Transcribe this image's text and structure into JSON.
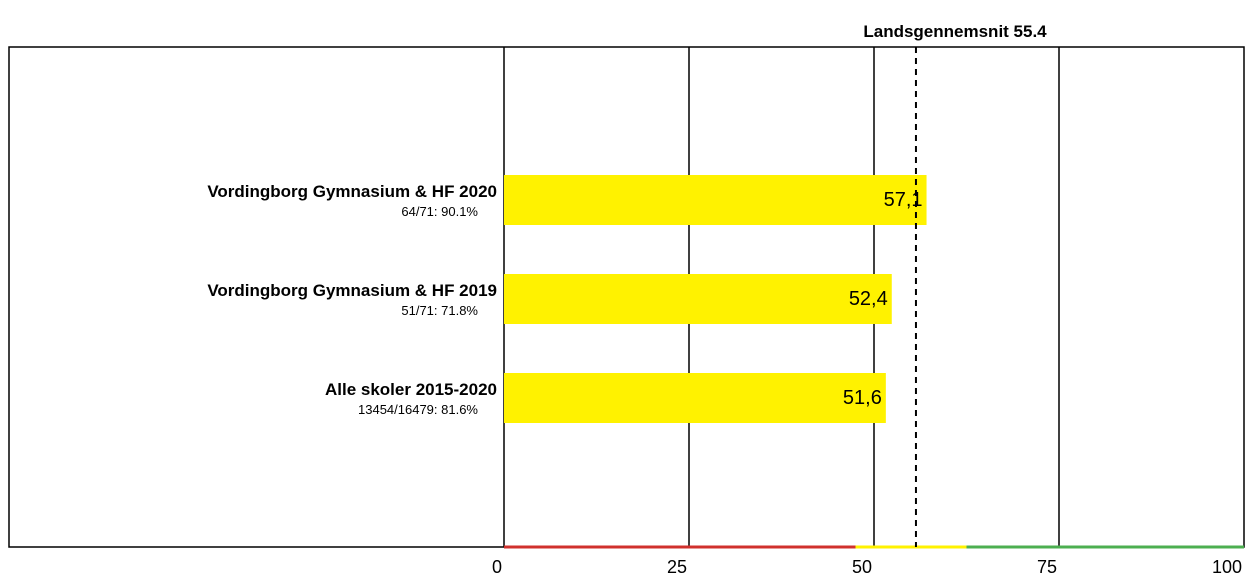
{
  "chart_data": {
    "type": "bar",
    "orientation": "horizontal",
    "categories": [
      "Vordingborg Gymnasium & HF 2020",
      "Vordingborg Gymnasium & HF 2019",
      "Alle skoler 2015-2020"
    ],
    "sublabels": [
      "64/71: 90.1%",
      "51/71: 71.8%",
      "13454/16479: 81.6%"
    ],
    "values": [
      57.1,
      52.4,
      51.6
    ],
    "value_labels": [
      "57,1",
      "52,4",
      "51,6"
    ],
    "xlim": [
      0,
      100
    ],
    "xticks": [
      0,
      25,
      50,
      75,
      100
    ],
    "xtick_labels": [
      "0",
      "25",
      "50",
      "75",
      "100"
    ],
    "grid": true,
    "reference_line": {
      "value": 55.4,
      "label": "Landsgennemsnit 55.4",
      "style": "dashed"
    },
    "axis_color_bands": [
      {
        "from": 0,
        "to": 47.5,
        "color": "#d0312d"
      },
      {
        "from": 47.5,
        "to": 62.5,
        "color": "#fff200"
      },
      {
        "from": 62.5,
        "to": 100,
        "color": "#4caf50"
      }
    ],
    "bar_color": "#fff200"
  }
}
